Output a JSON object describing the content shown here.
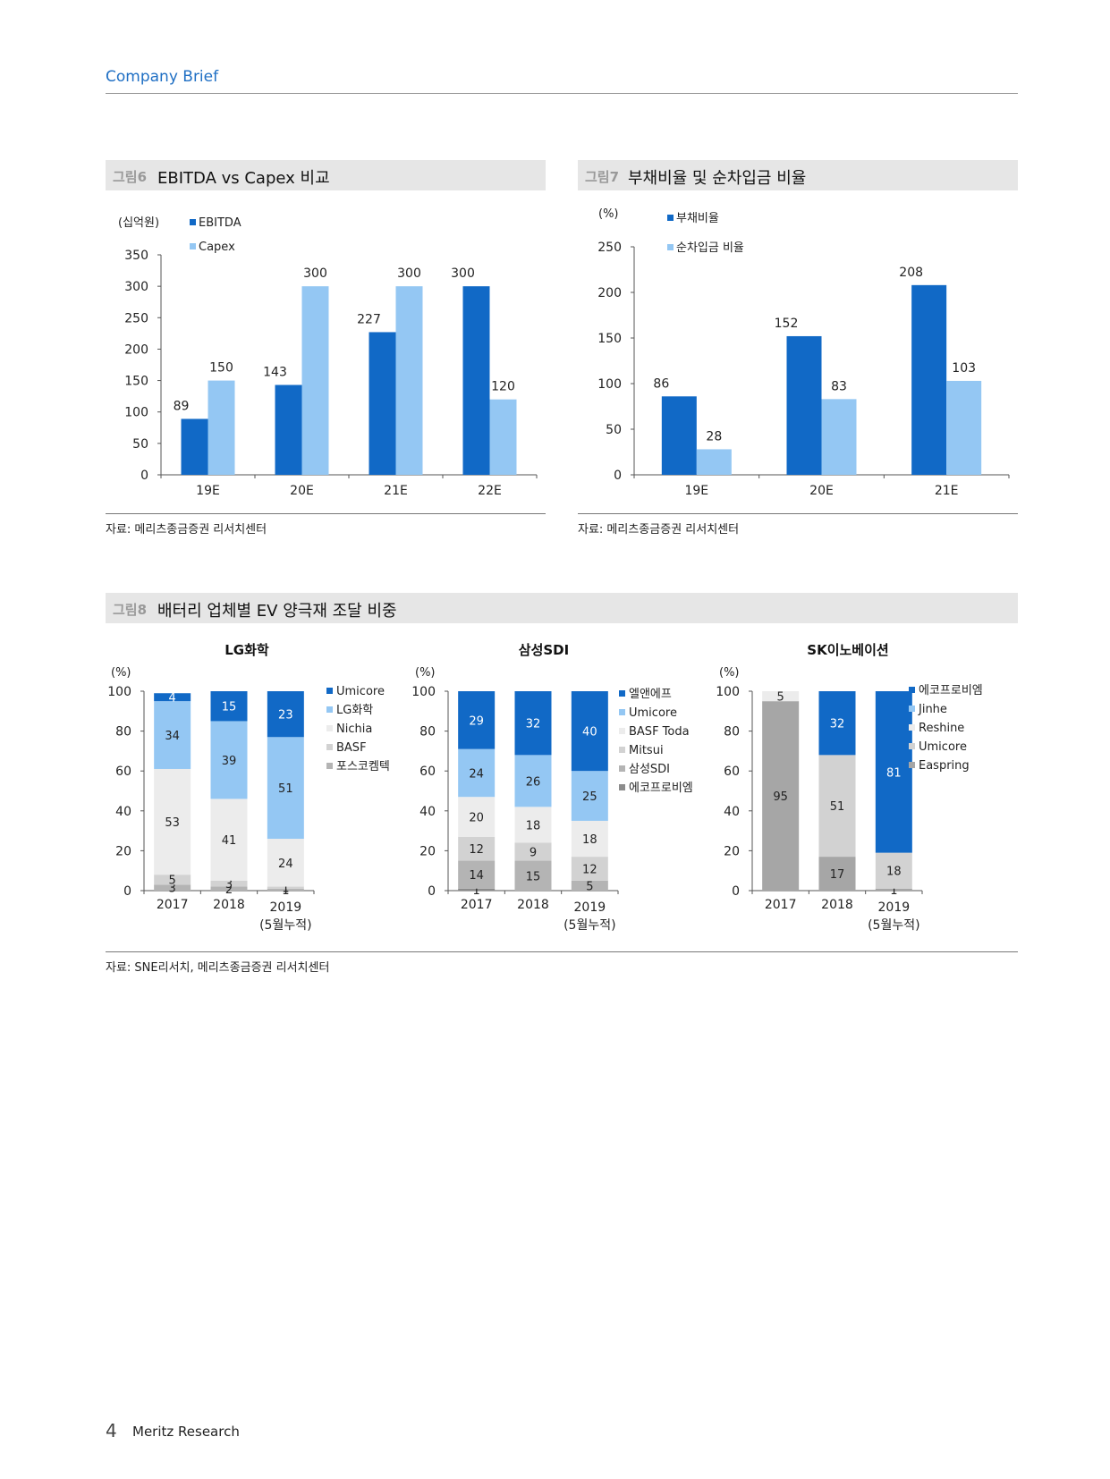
{
  "header": {
    "title": "Company Brief"
  },
  "footer": {
    "page": "4",
    "brand": "Meritz Research"
  },
  "colors": {
    "dark_blue": "#1169c6",
    "light_blue": "#94c7f3",
    "very_light": "#ececec",
    "light_gray": "#d2d2d2",
    "mid_gray": "#b4b4b4",
    "dark_gray": "#8c8c8c",
    "gray_95": "#a6a6a6"
  },
  "fig6": {
    "num": "그림6",
    "title": "EBITDA vs Capex 비교",
    "source": "자료: 메리츠종금증권 리서치센터"
  },
  "fig7": {
    "num": "그림7",
    "title": "부채비율 및 순차입금 비율",
    "source": "자료: 메리츠종금증권 리서치센터"
  },
  "fig8": {
    "num": "그림8",
    "title": "배터리 업체별 EV 양극재 조달 비중",
    "source": "자료: SNE리서치, 메리츠종금증권 리서치센터"
  },
  "chart_data": [
    {
      "id": "fig6",
      "type": "bar",
      "categories": [
        "19E",
        "20E",
        "21E",
        "22E"
      ],
      "series": [
        {
          "name": "EBITDA",
          "values": [
            89,
            143,
            227,
            300
          ],
          "color": "#1169c6"
        },
        {
          "name": "Capex",
          "values": [
            150,
            300,
            300,
            120
          ],
          "color": "#94c7f3"
        }
      ],
      "yunit": "(십억원)",
      "ylim": [
        0,
        350
      ],
      "yticks": [
        0,
        50,
        100,
        150,
        200,
        250,
        300,
        350
      ],
      "legend": "top-left"
    },
    {
      "id": "fig7",
      "type": "bar",
      "categories": [
        "19E",
        "20E",
        "21E"
      ],
      "series": [
        {
          "name": "부채비율",
          "values": [
            86,
            152,
            208
          ],
          "color": "#1169c6"
        },
        {
          "name": "순차입금 비율",
          "values": [
            28,
            83,
            103
          ],
          "color": "#94c7f3"
        }
      ],
      "yunit": "(%)",
      "ylim": [
        0,
        250
      ],
      "yticks": [
        0,
        50,
        100,
        150,
        200,
        250
      ],
      "legend": "top-left"
    },
    {
      "id": "lg",
      "type": "bar",
      "stacked": true,
      "title": "LG화학",
      "yunit": "(%)",
      "ylim": [
        0,
        100
      ],
      "yticks": [
        0,
        20,
        40,
        60,
        80,
        100
      ],
      "categories": [
        "2017",
        "2018",
        "2019"
      ],
      "category_sub": [
        "",
        "",
        "(5월누적)"
      ],
      "series": [
        {
          "name": "Umicore",
          "values": [
            4,
            15,
            23
          ],
          "color": "#1169c6"
        },
        {
          "name": "LG화학",
          "values": [
            34,
            39,
            51
          ],
          "color": "#94c7f3"
        },
        {
          "name": "Nichia",
          "values": [
            53,
            41,
            24
          ],
          "color": "#ececec"
        },
        {
          "name": "BASF",
          "values": [
            5,
            3,
            1
          ],
          "color": "#d2d2d2"
        },
        {
          "name": "포스코켐텍",
          "values": [
            3,
            2,
            1
          ],
          "color": "#b4b4b4"
        }
      ]
    },
    {
      "id": "sdi",
      "type": "bar",
      "stacked": true,
      "title": "삼성SDI",
      "yunit": "(%)",
      "ylim": [
        0,
        100
      ],
      "yticks": [
        0,
        20,
        40,
        60,
        80,
        100
      ],
      "categories": [
        "2017",
        "2018",
        "2019"
      ],
      "category_sub": [
        "",
        "",
        "(5월누적)"
      ],
      "series": [
        {
          "name": "엘앤에프",
          "values": [
            29,
            32,
            40
          ],
          "color": "#1169c6"
        },
        {
          "name": "Umicore",
          "values": [
            24,
            26,
            25
          ],
          "color": "#94c7f3"
        },
        {
          "name": "BASF Toda",
          "values": [
            20,
            18,
            18
          ],
          "color": "#ececec"
        },
        {
          "name": "Mitsui",
          "values": [
            12,
            9,
            12
          ],
          "color": "#d2d2d2"
        },
        {
          "name": "삼성SDI",
          "values": [
            14,
            15,
            5
          ],
          "color": "#b4b4b4"
        },
        {
          "name": "에코프로비엠",
          "values": [
            1,
            null,
            null
          ],
          "color": "#8c8c8c"
        }
      ]
    },
    {
      "id": "sk",
      "type": "bar",
      "stacked": true,
      "title": "SK이노베이션",
      "yunit": "(%)",
      "ylim": [
        0,
        100
      ],
      "yticks": [
        0,
        20,
        40,
        60,
        80,
        100
      ],
      "categories": [
        "2017",
        "2018",
        "2019"
      ],
      "category_sub": [
        "",
        "",
        "(5월누적)"
      ],
      "series": [
        {
          "name": "에코프로비엠",
          "values": [
            null,
            32,
            81
          ],
          "color": "#1169c6"
        },
        {
          "name": "Jinhe",
          "values": [
            null,
            null,
            null
          ],
          "color": "#94c7f3"
        },
        {
          "name": "Reshine",
          "values": [
            5,
            null,
            null
          ],
          "color": "#ececec"
        },
        {
          "name": "Umicore",
          "values": [
            null,
            51,
            18
          ],
          "color": "#d2d2d2"
        },
        {
          "name": "Easpring",
          "values": [
            95,
            17,
            1
          ],
          "color": "#a6a6a6"
        }
      ]
    }
  ]
}
